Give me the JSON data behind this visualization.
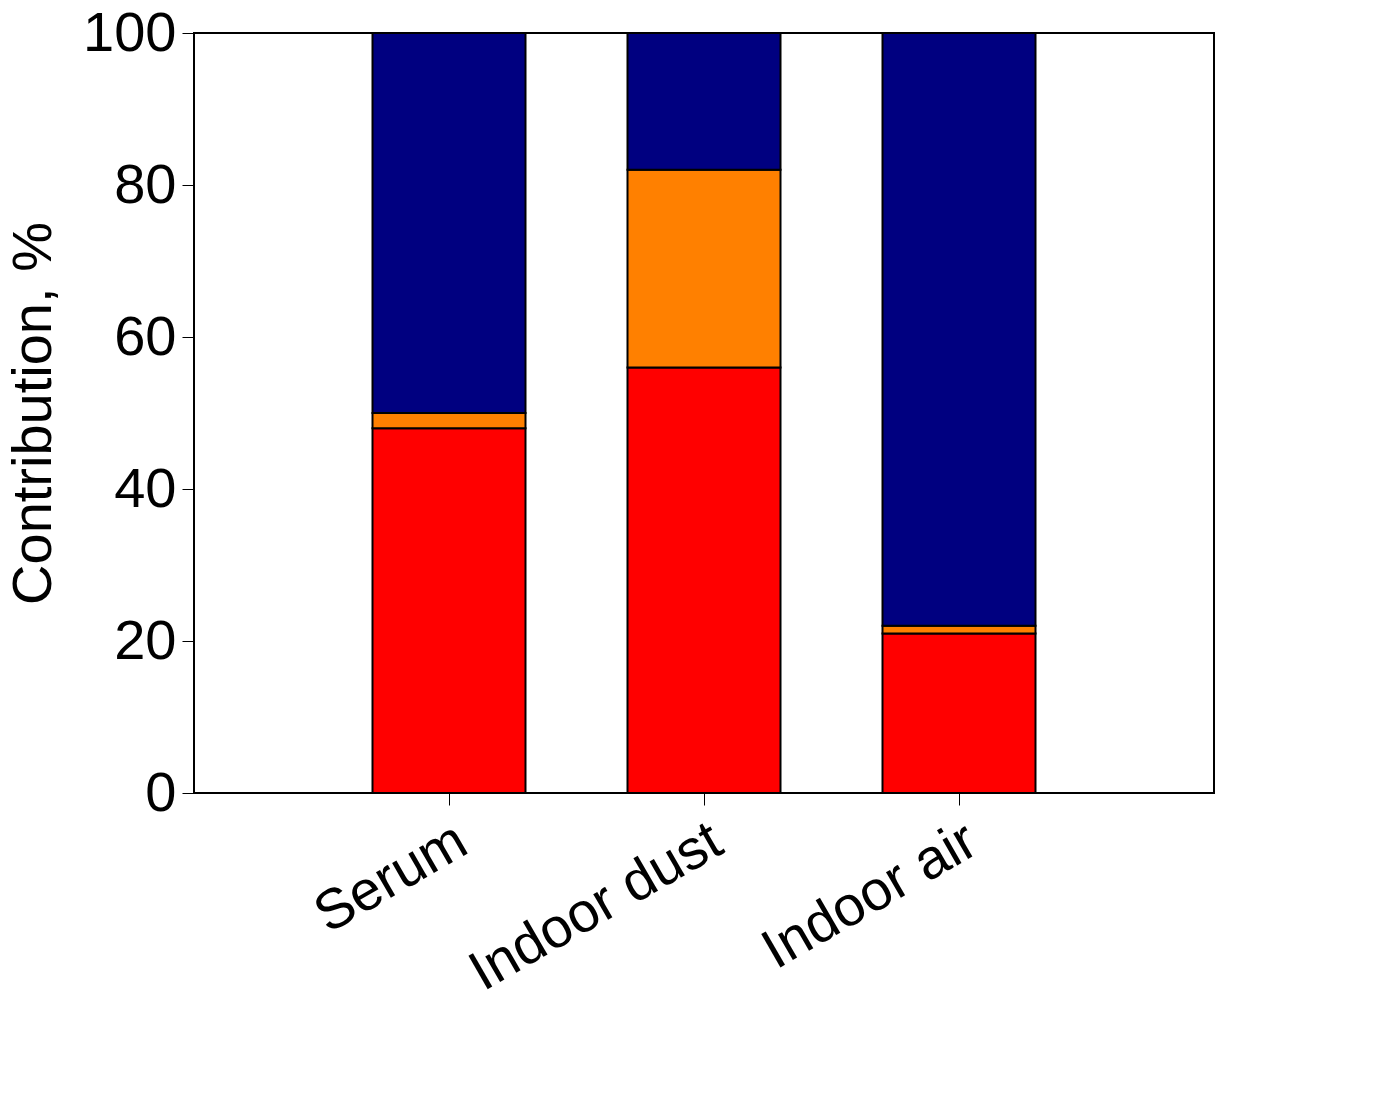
{
  "chart_data": {
    "type": "bar",
    "stacked": true,
    "ylabel": "Contribution, %",
    "categories": [
      "Serum",
      "Indoor dust",
      "Indoor air"
    ],
    "series": [
      {
        "color": "#ff0000",
        "values": [
          48,
          56,
          21
        ]
      },
      {
        "color": "#ff8000",
        "values": [
          2,
          26,
          1
        ]
      },
      {
        "color": "#000080",
        "values": [
          50,
          18,
          78
        ]
      }
    ],
    "ylim": [
      0,
      100
    ],
    "yticks": [
      0,
      20,
      40,
      60,
      80,
      100
    ],
    "grid": false,
    "legend": false
  }
}
